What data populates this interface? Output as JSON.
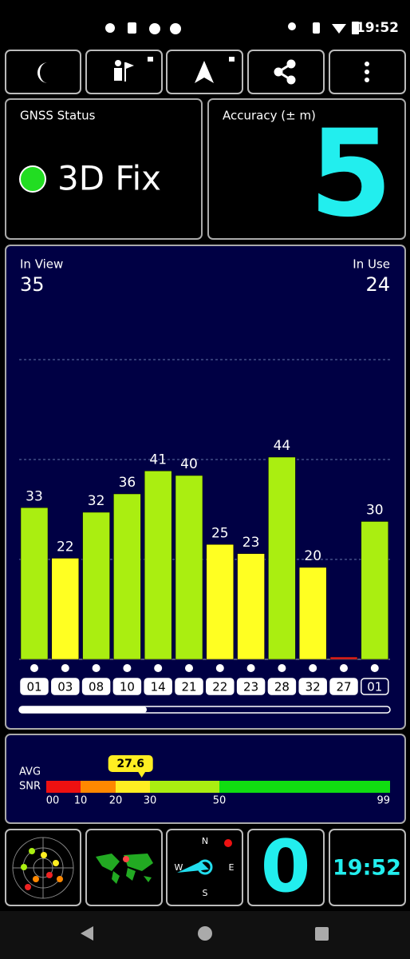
{
  "status_bar": {
    "time": "19:52"
  },
  "gnss_status": {
    "title": "GNSS Status",
    "value": "3D Fix"
  },
  "accuracy": {
    "title": "Accuracy (± m)",
    "value": "5"
  },
  "satellites": {
    "in_view_label": "In View",
    "in_view": "35",
    "in_use_label": "In Use",
    "in_use": "24",
    "snr": {
      "prns": [
        "01",
        "03",
        "08",
        "10",
        "14",
        "21",
        "22",
        "23",
        "28",
        "32",
        "27",
        "01"
      ],
      "values": [
        33,
        22,
        32,
        36,
        41,
        40,
        25,
        23,
        44,
        20,
        0.5,
        30
      ],
      "value_labels": [
        "33",
        "22",
        "32",
        "36",
        "41",
        "40",
        "25",
        "23",
        "44",
        "20",
        null,
        "30"
      ],
      "colors": [
        "#aaee11",
        "#ffff22",
        "#aaee11",
        "#aaee11",
        "#aaee11",
        "#aaee11",
        "#ffff22",
        "#ffff22",
        "#aaee11",
        "#ffff22",
        "#ee2222",
        "#aaee11"
      ]
    }
  },
  "avg_snr": {
    "label_top": "AVG",
    "label_bottom": "SNR",
    "value": 27.6,
    "ticks": [
      {
        "value": 0,
        "label": "00"
      },
      10,
      20,
      30,
      50,
      99
    ],
    "segment_colors": [
      "#ee1111",
      "#ff8800",
      "#ffee22",
      "#aaee11",
      "#11dd11"
    ]
  },
  "compass": {
    "north": "N",
    "east": "E",
    "south": "S",
    "west": "W"
  },
  "tile_value": "0",
  "clock": "19:52"
}
